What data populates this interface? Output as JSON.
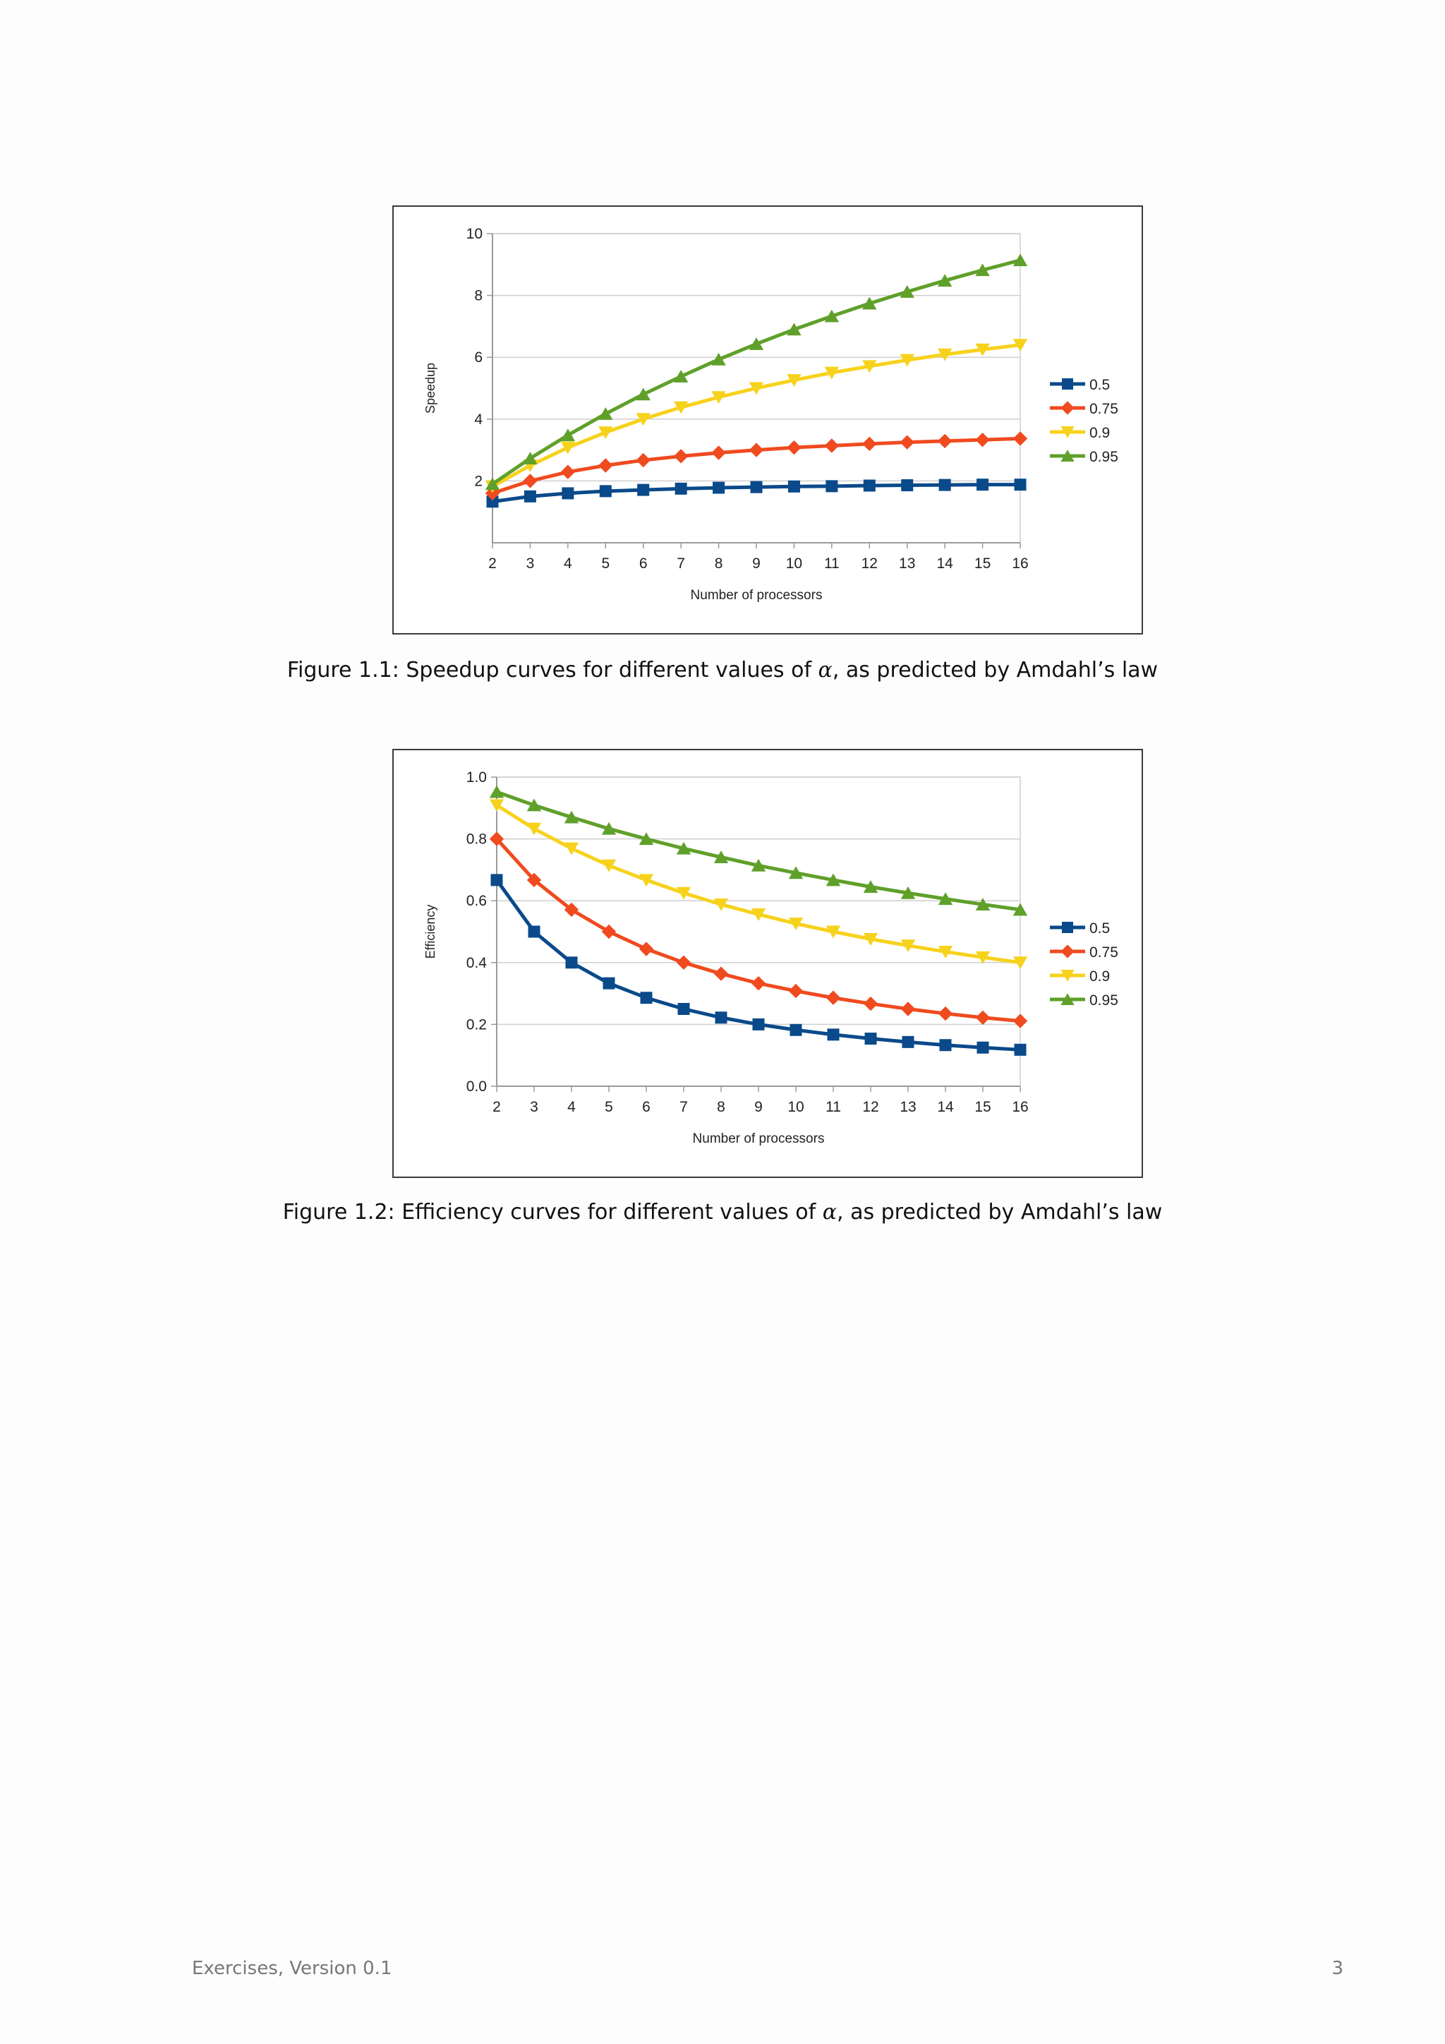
{
  "colors": {
    "series": [
      "#0a4a8a",
      "#f04a1f",
      "#f7d21c",
      "#5fa02a"
    ],
    "grid": "#cfcfcf",
    "axis": "#9a9a9a"
  },
  "chart_data": [
    {
      "type": "line",
      "ylabel": "Speedup",
      "xlabel": "Number of processors",
      "x": [
        2,
        3,
        4,
        5,
        6,
        7,
        8,
        9,
        10,
        11,
        12,
        13,
        14,
        15,
        16
      ],
      "ylim": [
        0,
        10
      ],
      "yticks": [
        2,
        4,
        6,
        8,
        10
      ],
      "ytick_labels": [
        "2",
        "4",
        "6",
        "8",
        "10"
      ],
      "legend_position": "right",
      "series": [
        {
          "name": "0.5",
          "marker": "square",
          "values": [
            1.33,
            1.5,
            1.6,
            1.67,
            1.71,
            1.75,
            1.78,
            1.8,
            1.82,
            1.83,
            1.85,
            1.86,
            1.87,
            1.88,
            1.88
          ]
        },
        {
          "name": "0.75",
          "marker": "diamond",
          "values": [
            1.6,
            2.0,
            2.29,
            2.5,
            2.67,
            2.8,
            2.91,
            3.0,
            3.08,
            3.14,
            3.2,
            3.25,
            3.29,
            3.33,
            3.37
          ]
        },
        {
          "name": "0.9",
          "marker": "triangle-down",
          "values": [
            1.82,
            2.5,
            3.08,
            3.57,
            4.0,
            4.38,
            4.71,
            5.0,
            5.26,
            5.5,
            5.71,
            5.91,
            6.09,
            6.25,
            6.4
          ]
        },
        {
          "name": "0.95",
          "marker": "triangle-up",
          "values": [
            1.9,
            2.73,
            3.48,
            4.17,
            4.8,
            5.38,
            5.93,
            6.43,
            6.9,
            7.33,
            7.74,
            8.12,
            8.48,
            8.82,
            9.14
          ]
        }
      ]
    },
    {
      "type": "line",
      "ylabel": "Efficiency",
      "xlabel": "Number of processors",
      "x": [
        2,
        3,
        4,
        5,
        6,
        7,
        8,
        9,
        10,
        11,
        12,
        13,
        14,
        15,
        16
      ],
      "ylim": [
        0,
        1
      ],
      "yticks": [
        0,
        0.2,
        0.4,
        0.6,
        0.8,
        1.0
      ],
      "ytick_labels": [
        "0.0",
        "0.2",
        "0.4",
        "0.6",
        "0.8",
        "1.0"
      ],
      "legend_position": "right",
      "series": [
        {
          "name": "0.5",
          "marker": "square",
          "values": [
            0.667,
            0.5,
            0.4,
            0.333,
            0.286,
            0.25,
            0.222,
            0.2,
            0.182,
            0.167,
            0.154,
            0.143,
            0.133,
            0.125,
            0.118
          ]
        },
        {
          "name": "0.75",
          "marker": "diamond",
          "values": [
            0.8,
            0.667,
            0.571,
            0.5,
            0.444,
            0.4,
            0.364,
            0.333,
            0.308,
            0.286,
            0.267,
            0.25,
            0.235,
            0.222,
            0.211
          ]
        },
        {
          "name": "0.9",
          "marker": "triangle-down",
          "values": [
            0.909,
            0.833,
            0.769,
            0.714,
            0.667,
            0.625,
            0.588,
            0.556,
            0.526,
            0.5,
            0.476,
            0.455,
            0.435,
            0.417,
            0.4
          ]
        },
        {
          "name": "0.95",
          "marker": "triangle-up",
          "values": [
            0.952,
            0.909,
            0.87,
            0.833,
            0.8,
            0.769,
            0.741,
            0.714,
            0.69,
            0.667,
            0.645,
            0.625,
            0.606,
            0.588,
            0.571
          ]
        }
      ]
    }
  ],
  "captions": {
    "fig1": {
      "before": "Figure 1.1: Speedup curves for different values of ",
      "symbol": "α",
      "after": ", as predicted by Amdahl’s law"
    },
    "fig2": {
      "before": "Figure 1.2: Efficiency curves for different values of ",
      "symbol": "α",
      "after": ", as predicted by Amdahl’s law"
    }
  },
  "footer": {
    "left": "Exercises, Version 0.1",
    "page_number": "3"
  }
}
